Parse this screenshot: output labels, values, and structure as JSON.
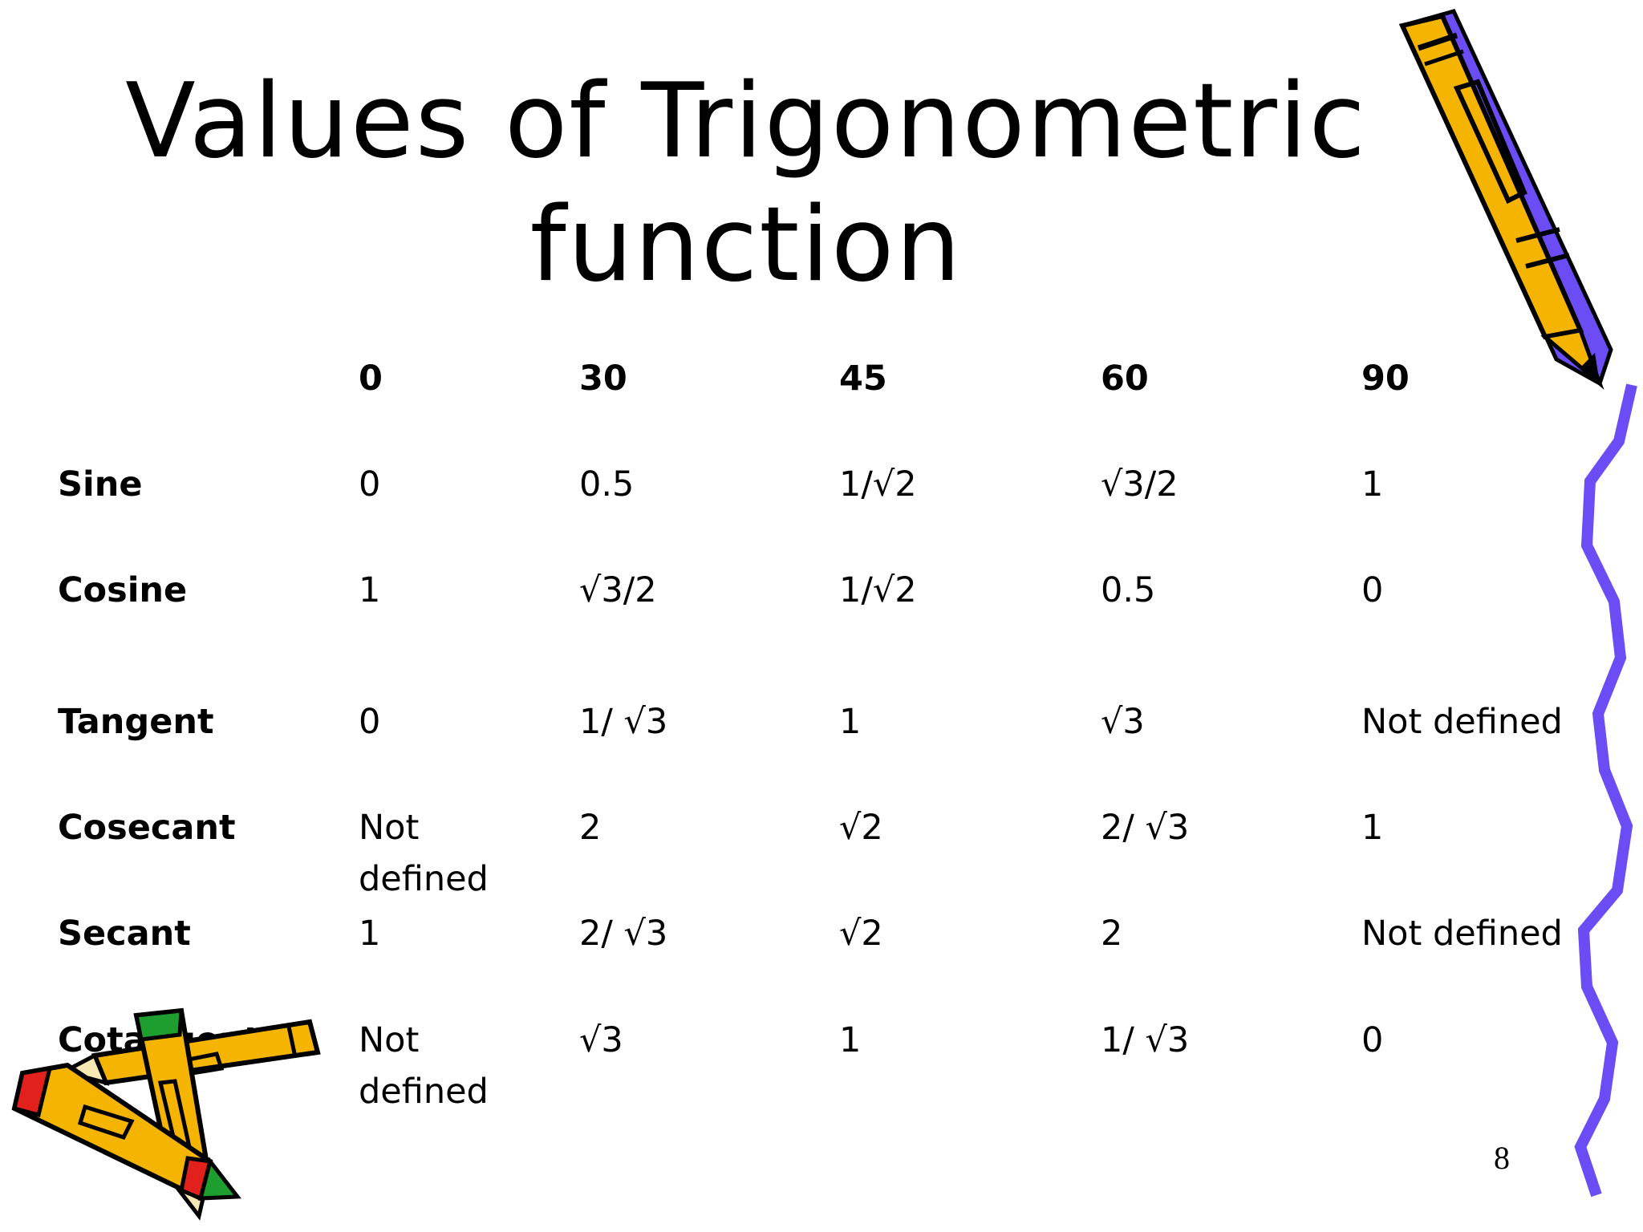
{
  "title": {
    "line1": "Values of Trigonometric",
    "line2": "function"
  },
  "table": {
    "headers": [
      "0",
      "30",
      "45",
      "60",
      "90"
    ],
    "rows": [
      {
        "label": "Sine",
        "values": [
          "0",
          "0.5",
          "1/√2",
          "√3/2",
          "1"
        ]
      },
      {
        "label": "Cosine",
        "values": [
          "1",
          "√3/2",
          "1/√2",
          "0.5",
          "0"
        ]
      },
      {
        "label": "Tangent",
        "values": [
          "0",
          "1/ √3",
          "1",
          "√3",
          "Not defined"
        ]
      },
      {
        "label": "Cosecant",
        "values": [
          "Not\ndefined",
          "2",
          "√2",
          "2/ √3",
          "1"
        ]
      },
      {
        "label": "Secant",
        "values": [
          "1",
          "2/ √3",
          "√2",
          "2",
          "Not defined"
        ]
      },
      {
        "label": "Cotangent",
        "values": [
          "Not\ndefined",
          "√3",
          "1",
          "1/ √3",
          "0"
        ]
      }
    ]
  },
  "page_number": "8",
  "colors": {
    "pencil_yellow": "#F4B400",
    "squiggle_purple": "#6B4CF5",
    "crayon_red": "#E3211C",
    "crayon_green": "#1E9E2E"
  },
  "decorations": [
    "pencil-top-right-icon",
    "squiggle-right-icon",
    "crayons-bottom-left-icon"
  ]
}
